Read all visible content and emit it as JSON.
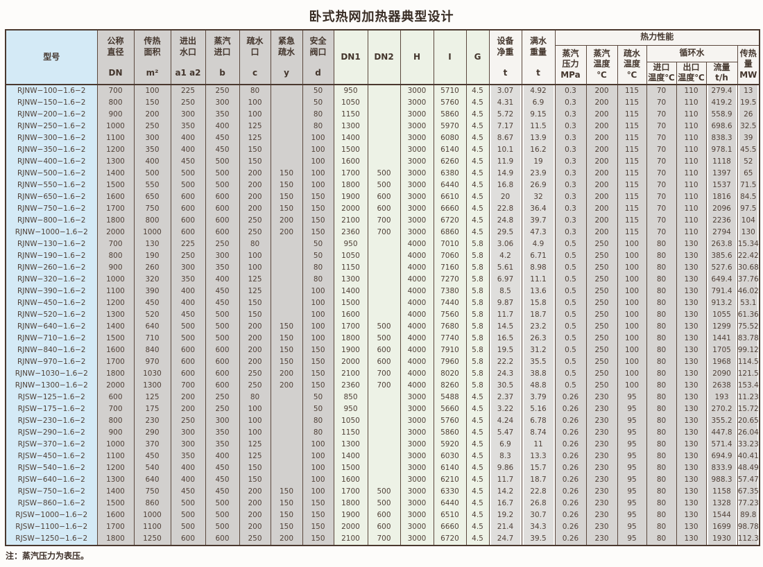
{
  "title": "卧式热网加热器典型设计",
  "note": "注：蒸汽压力为表压。",
  "table": {
    "header": {
      "model": "型号",
      "left_cols": [
        {
          "name": "公称\n直径",
          "unit": "DN"
        },
        {
          "name": "传热\n面积",
          "unit": "m²"
        },
        {
          "name": "进出\n水口",
          "unit": "a1 a2"
        },
        {
          "name": "蒸汽\n进口",
          "unit": "b"
        },
        {
          "name": "疏水\n口",
          "unit": "c"
        },
        {
          "name": "紧急\n疏水",
          "unit": "y"
        },
        {
          "name": "安全\n阀口",
          "unit": "d"
        }
      ],
      "mid_cols": [
        "DN1",
        "DN2",
        "H",
        "I",
        "G"
      ],
      "net_weight": {
        "name": "设备\n净重",
        "unit": "t"
      },
      "full_weight": {
        "name": "满水\n重量",
        "unit": "t"
      },
      "thermal_group": "热力性能",
      "thermal_cols": [
        "蒸汽\n压力\nMPa",
        "蒸汽\n温度\n℃",
        "疏水\n温度\n℃"
      ],
      "circ_group": "循环水",
      "circ_cols": [
        "进口\n温度℃",
        "出口\n温度℃",
        "流量\nt/h"
      ],
      "heat_col": "传热\n量\nMW"
    },
    "rows": [
      [
        "RJNW−100−1.6−2",
        "700",
        "100",
        "225",
        "250",
        "80",
        "",
        "50",
        "950",
        "",
        "3000",
        "5710",
        "4.5",
        "3.07",
        "4.92",
        "0.3",
        "200",
        "115",
        "70",
        "110",
        "279.4",
        "13"
      ],
      [
        "RJNW−150−1.6−2",
        "800",
        "150",
        "250",
        "300",
        "100",
        "",
        "50",
        "1050",
        "",
        "3000",
        "5760",
        "4.5",
        "4.31",
        "6.9",
        "0.3",
        "200",
        "115",
        "70",
        "110",
        "419.2",
        "19.5"
      ],
      [
        "RJNW−200−1.6−2",
        "900",
        "200",
        "300",
        "350",
        "100",
        "",
        "80",
        "1150",
        "",
        "3000",
        "5860",
        "4.5",
        "5.72",
        "9.15",
        "0.3",
        "200",
        "115",
        "70",
        "110",
        "558.9",
        "26"
      ],
      [
        "RJNW−250−1.6−2",
        "1000",
        "250",
        "350",
        "400",
        "125",
        "",
        "80",
        "1300",
        "",
        "3000",
        "5970",
        "4.5",
        "7.17",
        "11.5",
        "0.3",
        "200",
        "115",
        "70",
        "110",
        "698.6",
        "32.5"
      ],
      [
        "RJNW−300−1.6−2",
        "1100",
        "300",
        "400",
        "450",
        "125",
        "",
        "100",
        "1400",
        "",
        "3000",
        "6080",
        "4.5",
        "8.67",
        "13.9",
        "0.3",
        "200",
        "115",
        "70",
        "110",
        "838.3",
        "39"
      ],
      [
        "RJNW−350−1.6−2",
        "1200",
        "350",
        "400",
        "450",
        "150",
        "",
        "100",
        "1500",
        "",
        "3000",
        "6140",
        "4.5",
        "10.1",
        "16.2",
        "0.3",
        "200",
        "115",
        "70",
        "110",
        "978.1",
        "45.5"
      ],
      [
        "RJNW−400−1.6−2",
        "1300",
        "400",
        "450",
        "500",
        "150",
        "",
        "100",
        "1600",
        "",
        "3000",
        "6260",
        "4.5",
        "11.9",
        "19",
        "0.3",
        "200",
        "115",
        "70",
        "110",
        "1118",
        "52"
      ],
      [
        "RJNW−500−1.6−2",
        "1400",
        "500",
        "500",
        "500",
        "200",
        "150",
        "100",
        "1700",
        "500",
        "3000",
        "6380",
        "4.5",
        "14.9",
        "23.9",
        "0.3",
        "200",
        "115",
        "70",
        "110",
        "1397",
        "65"
      ],
      [
        "RJNW−550−1.6−2",
        "1500",
        "550",
        "500",
        "500",
        "200",
        "150",
        "100",
        "1800",
        "500",
        "3000",
        "6440",
        "4.5",
        "16.8",
        "26.9",
        "0.3",
        "200",
        "115",
        "70",
        "110",
        "1537",
        "71.5"
      ],
      [
        "RJNW−650−1.6−2",
        "1600",
        "650",
        "600",
        "600",
        "200",
        "150",
        "150",
        "1900",
        "600",
        "3000",
        "6610",
        "4.5",
        "20",
        "32",
        "0.3",
        "200",
        "115",
        "70",
        "110",
        "1816",
        "84.5"
      ],
      [
        "RJNW−750−1.6−2",
        "1700",
        "750",
        "600",
        "600",
        "200",
        "150",
        "150",
        "2000",
        "600",
        "3000",
        "6660",
        "4.5",
        "22.8",
        "36.4",
        "0.3",
        "200",
        "115",
        "70",
        "110",
        "2096",
        "97.5"
      ],
      [
        "RJNW−800−1.6−2",
        "1800",
        "800",
        "600",
        "600",
        "250",
        "200",
        "150",
        "2100",
        "700",
        "3000",
        "6720",
        "4.5",
        "24.8",
        "39.7",
        "0.3",
        "200",
        "115",
        "70",
        "110",
        "2236",
        "104"
      ],
      [
        "RJNW−1000−1.6−2",
        "2000",
        "1000",
        "600",
        "600",
        "250",
        "200",
        "150",
        "2360",
        "700",
        "3000",
        "6860",
        "4.5",
        "29.5",
        "47.3",
        "0.3",
        "200",
        "115",
        "70",
        "110",
        "2794",
        "130"
      ],
      [
        "RJNW−130−1.6−2",
        "700",
        "130",
        "225",
        "250",
        "80",
        "",
        "50",
        "950",
        "",
        "4000",
        "7010",
        "5.8",
        "3.06",
        "4.9",
        "0.5",
        "250",
        "100",
        "80",
        "130",
        "263.8",
        "15.34"
      ],
      [
        "RJNW−190−1.6−2",
        "800",
        "190",
        "250",
        "300",
        "100",
        "",
        "50",
        "1050",
        "",
        "4000",
        "7060",
        "5.8",
        "4.2",
        "6.71",
        "0.5",
        "250",
        "100",
        "80",
        "130",
        "385.6",
        "22.42"
      ],
      [
        "RJNW−260−1.6−2",
        "900",
        "260",
        "300",
        "350",
        "100",
        "",
        "80",
        "1150",
        "",
        "4000",
        "7160",
        "5.8",
        "5.61",
        "8.98",
        "0.5",
        "250",
        "100",
        "80",
        "130",
        "527.6",
        "30.68"
      ],
      [
        "RJNW−320−1.6−2",
        "1000",
        "320",
        "350",
        "400",
        "125",
        "",
        "80",
        "1300",
        "",
        "4000",
        "7270",
        "5.8",
        "6.97",
        "11.1",
        "0.5",
        "250",
        "100",
        "80",
        "130",
        "649.4",
        "37.76"
      ],
      [
        "RJNW−390−1.6−2",
        "1100",
        "390",
        "400",
        "450",
        "125",
        "",
        "100",
        "1400",
        "",
        "4000",
        "7380",
        "5.8",
        "8.5",
        "13.6",
        "0.5",
        "250",
        "100",
        "80",
        "130",
        "791.4",
        "46.02"
      ],
      [
        "RJNW−450−1.6−2",
        "1200",
        "450",
        "400",
        "450",
        "150",
        "",
        "100",
        "1500",
        "",
        "4000",
        "7440",
        "5.8",
        "9.87",
        "15.8",
        "0.5",
        "250",
        "100",
        "80",
        "130",
        "913.2",
        "53.1"
      ],
      [
        "RJNW−520−1.6−2",
        "1300",
        "520",
        "450",
        "500",
        "150",
        "",
        "100",
        "1600",
        "",
        "4000",
        "7560",
        "5.8",
        "11.7",
        "18.7",
        "0.5",
        "250",
        "100",
        "80",
        "130",
        "1055",
        "61.36"
      ],
      [
        "RJNW−640−1.6−2",
        "1400",
        "640",
        "500",
        "500",
        "200",
        "150",
        "100",
        "1700",
        "500",
        "4000",
        "7680",
        "5.8",
        "14.5",
        "23.2",
        "0.5",
        "250",
        "100",
        "80",
        "130",
        "1299",
        "75.52"
      ],
      [
        "RJNW−710−1.6−2",
        "1500",
        "710",
        "500",
        "500",
        "200",
        "150",
        "100",
        "1800",
        "500",
        "4000",
        "7740",
        "5.8",
        "16.5",
        "26.3",
        "0.5",
        "250",
        "100",
        "80",
        "130",
        "1441",
        "83.78"
      ],
      [
        "RJNW−840−1.6−2",
        "1600",
        "840",
        "600",
        "600",
        "200",
        "150",
        "150",
        "1900",
        "600",
        "4000",
        "7910",
        "5.8",
        "19.5",
        "31.2",
        "0.5",
        "250",
        "100",
        "80",
        "130",
        "1705",
        "99.12"
      ],
      [
        "RJNW−970−1.6−2",
        "1700",
        "970",
        "600",
        "600",
        "200",
        "150",
        "150",
        "2000",
        "600",
        "4000",
        "7960",
        "5.8",
        "22.2",
        "35.5",
        "0.5",
        "250",
        "100",
        "80",
        "130",
        "1968",
        "114.5"
      ],
      [
        "RJNW−1030−1.6−2",
        "1800",
        "1030",
        "600",
        "600",
        "250",
        "200",
        "150",
        "2100",
        "700",
        "4000",
        "8020",
        "5.8",
        "24.3",
        "38.8",
        "0.5",
        "250",
        "100",
        "80",
        "130",
        "2090",
        "121.5"
      ],
      [
        "RJNW−1300−1.6−2",
        "2000",
        "1300",
        "700",
        "600",
        "250",
        "200",
        "150",
        "2360",
        "700",
        "4000",
        "8260",
        "5.8",
        "30.5",
        "48.8",
        "0.5",
        "250",
        "100",
        "80",
        "130",
        "2638",
        "153.4"
      ],
      [
        "RJSW−125−1.6−2",
        "600",
        "125",
        "200",
        "250",
        "80",
        "",
        "50",
        "850",
        "",
        "3000",
        "5488",
        "4.5",
        "2.37",
        "3.79",
        "0.26",
        "230",
        "95",
        "80",
        "130",
        "193",
        "11.23"
      ],
      [
        "RJSW−175−1.6−2",
        "700",
        "175",
        "200",
        "250",
        "100",
        "",
        "50",
        "950",
        "",
        "3000",
        "5660",
        "4.5",
        "3.22",
        "5.16",
        "0.26",
        "230",
        "95",
        "80",
        "130",
        "270.2",
        "15.72"
      ],
      [
        "RJSW−230−1.6−2",
        "800",
        "230",
        "250",
        "300",
        "100",
        "",
        "80",
        "1050",
        "",
        "3000",
        "5760",
        "4.5",
        "4.24",
        "6.78",
        "0.26",
        "230",
        "95",
        "80",
        "130",
        "355.2",
        "20.65"
      ],
      [
        "RJSW−290−1.6−2",
        "900",
        "290",
        "300",
        "350",
        "100",
        "",
        "80",
        "1150",
        "",
        "3000",
        "5860",
        "4.5",
        "5.47",
        "8.74",
        "0.26",
        "230",
        "95",
        "80",
        "130",
        "447.8",
        "26.04"
      ],
      [
        "RJSW−370−1.6−2",
        "1000",
        "370",
        "300",
        "350",
        "125",
        "",
        "100",
        "1300",
        "",
        "3000",
        "5920",
        "4.5",
        "6.9",
        "11",
        "0.26",
        "230",
        "95",
        "80",
        "130",
        "571.4",
        "33.23"
      ],
      [
        "RJSW−450−1.6−2",
        "1100",
        "450",
        "350",
        "400",
        "125",
        "",
        "100",
        "1400",
        "",
        "3000",
        "6030",
        "4.5",
        "8.3",
        "13.3",
        "0.26",
        "230",
        "95",
        "80",
        "130",
        "694.9",
        "40.41"
      ],
      [
        "RJSW−540−1.6−2",
        "1200",
        "540",
        "400",
        "450",
        "150",
        "",
        "100",
        "1500",
        "",
        "3000",
        "6140",
        "4.5",
        "9.86",
        "15.7",
        "0.26",
        "230",
        "95",
        "80",
        "130",
        "833.9",
        "48.49"
      ],
      [
        "RJSW−640−1.6−2",
        "1300",
        "640",
        "400",
        "450",
        "150",
        "",
        "100",
        "1600",
        "",
        "3000",
        "6210",
        "4.5",
        "11.7",
        "18.7",
        "0.26",
        "230",
        "95",
        "80",
        "130",
        "988.3",
        "57.47"
      ],
      [
        "RJSW−750−1.6−2",
        "1400",
        "750",
        "450",
        "450",
        "200",
        "150",
        "100",
        "1700",
        "500",
        "3000",
        "6330",
        "4.5",
        "14.2",
        "22.8",
        "0.26",
        "230",
        "95",
        "80",
        "130",
        "1158",
        "67.35"
      ],
      [
        "RJSW−860−1.6−2",
        "1500",
        "860",
        "500",
        "500",
        "200",
        "150",
        "150",
        "1800",
        "500",
        "3000",
        "6440",
        "4.5",
        "16.7",
        "26.8",
        "0.26",
        "230",
        "95",
        "80",
        "130",
        "1328",
        "77.23"
      ],
      [
        "RJSW−1000−1.6−2",
        "1600",
        "1000",
        "500",
        "500",
        "200",
        "150",
        "150",
        "1900",
        "600",
        "3000",
        "6510",
        "4.5",
        "19.2",
        "30.7",
        "0.26",
        "230",
        "95",
        "80",
        "130",
        "1544",
        "89.8"
      ],
      [
        "RJSW−1100−1.6−2",
        "1700",
        "1100",
        "500",
        "500",
        "200",
        "150",
        "150",
        "2000",
        "600",
        "3000",
        "6660",
        "4.5",
        "21.4",
        "34.3",
        "0.26",
        "230",
        "95",
        "80",
        "130",
        "1699",
        "98.78"
      ],
      [
        "RJSW−1250−1.6−2",
        "1800",
        "1250",
        "600",
        "600",
        "250",
        "200",
        "150",
        "2100",
        "700",
        "3000",
        "6720",
        "4.5",
        "24.7",
        "39.5",
        "0.26",
        "230",
        "95",
        "80",
        "130",
        "1930",
        "112.3"
      ]
    ]
  }
}
